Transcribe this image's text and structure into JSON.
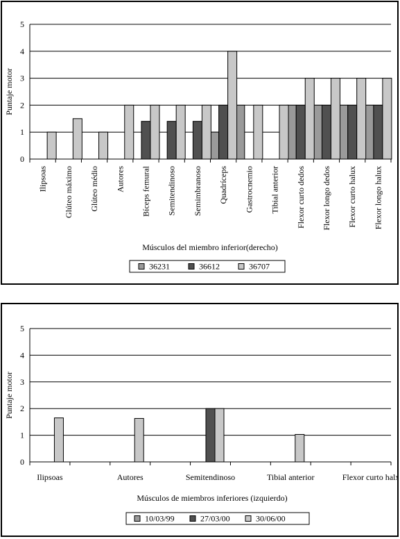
{
  "chart_data": [
    {
      "type": "bar",
      "ylabel": "Puntaje motor",
      "xlabel": "Músculos del miembro inferior(derecho)",
      "ylim": [
        0,
        5
      ],
      "yticks": [
        0,
        1,
        2,
        3,
        4,
        5
      ],
      "grid": true,
      "legend_position": "bottom",
      "categories": [
        "Ilipsoas",
        "Glúteo máximo",
        "Glúteo médio",
        "Autores",
        "Bíceps femural",
        "Semitendinoso",
        "Semimbranoso",
        "Quadríceps",
        "Gastrocnemio",
        "Tibial anterior",
        "Flexor curto dedos",
        "Flexor longo dedos",
        "Flexor curto halux",
        "Flexor longo halux"
      ],
      "series": [
        {
          "name": "36231",
          "color": "#9a9a9a",
          "values": [
            0,
            0,
            0,
            0,
            0,
            0,
            0,
            1,
            2,
            0,
            2,
            2,
            2,
            2
          ]
        },
        {
          "name": "36612",
          "color": "#505050",
          "values": [
            0,
            0,
            0,
            0,
            1.4,
            1.4,
            1.4,
            2,
            0,
            0,
            2,
            2,
            2,
            2
          ]
        },
        {
          "name": "36707",
          "color": "#c8c8c8",
          "values": [
            1,
            1.5,
            1,
            2,
            2,
            2,
            2,
            4,
            2,
            2,
            3,
            3,
            3,
            3
          ]
        }
      ]
    },
    {
      "type": "bar",
      "ylabel": "Puntaje motor",
      "xlabel": "Músculos de miembros inferiores (izquierdo)",
      "ylim": [
        0,
        5
      ],
      "yticks": [
        0,
        1,
        2,
        3,
        4,
        5
      ],
      "grid": true,
      "legend_position": "bottom",
      "categories": [
        "Ilipsoas",
        "",
        "Autores",
        "",
        "Semitendinoso",
        "",
        "Tibial anterior",
        "",
        "Flexor curto halx"
      ],
      "series": [
        {
          "name": "10/03/99",
          "color": "#9a9a9a",
          "values": [
            0,
            0,
            0,
            0,
            0,
            0,
            0,
            0,
            0
          ]
        },
        {
          "name": "27/03/00",
          "color": "#505050",
          "values": [
            0,
            0,
            0,
            0,
            2,
            0,
            0,
            0,
            0
          ]
        },
        {
          "name": "30/06/00",
          "color": "#c8c8c8",
          "values": [
            1.65,
            0,
            1.63,
            0,
            2,
            0,
            1.03,
            0,
            0
          ]
        }
      ]
    }
  ]
}
